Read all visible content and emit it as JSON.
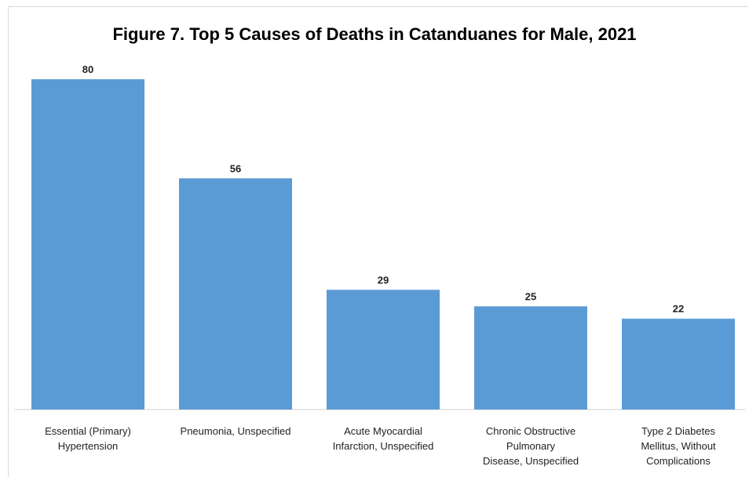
{
  "chart_data": {
    "type": "bar",
    "title": "Figure 7. Top 5 Causes of Deaths in Catanduanes for Male, 2021",
    "categories": [
      [
        "Essential (Primary)",
        "Hypertension"
      ],
      [
        "Pneumonia, Unspecified"
      ],
      [
        "Acute Myocardial",
        "Infarction, Unspecified"
      ],
      [
        "Chronic Obstructive",
        "Pulmonary",
        "Disease, Unspecified"
      ],
      [
        "Type 2 Diabetes",
        "Mellitus, Without",
        "Complications"
      ]
    ],
    "values": [
      80,
      56,
      29,
      25,
      22
    ],
    "ylim": [
      0,
      80
    ],
    "grid": false,
    "bar_color": "#5b9bd5"
  }
}
